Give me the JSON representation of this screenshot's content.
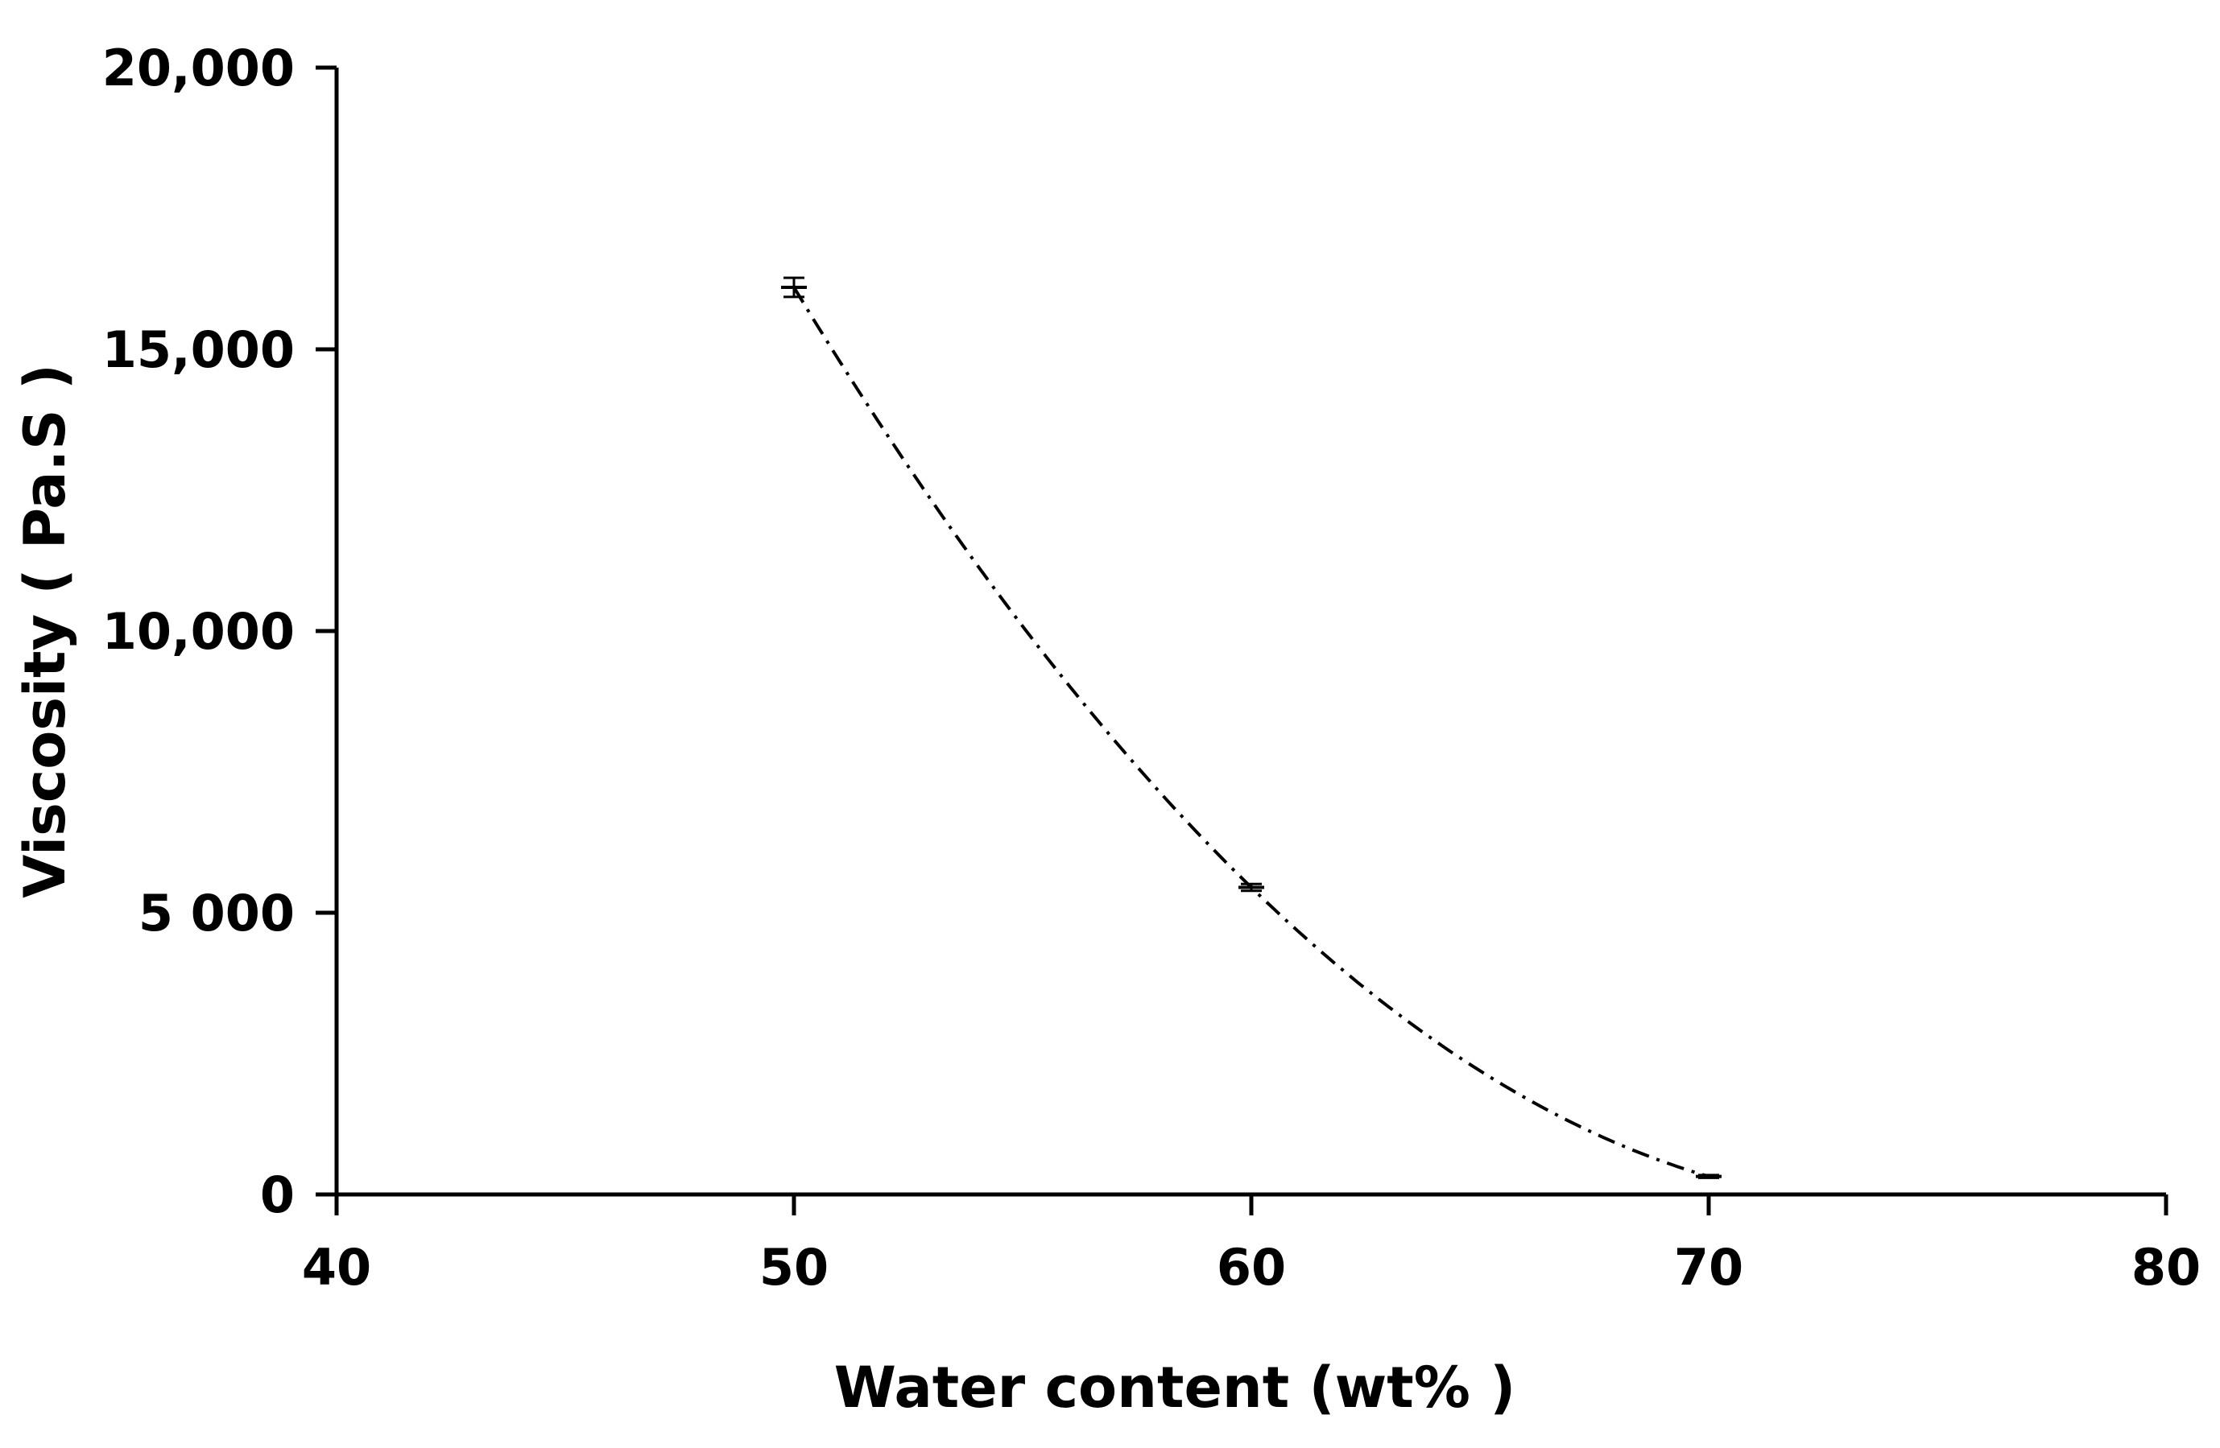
{
  "chart_data": {
    "type": "line",
    "title": "",
    "xlabel": "Water content  (wt% )",
    "ylabel": "Viscosity  ( Pa.S )",
    "xlim": [
      40,
      80
    ],
    "ylim": [
      0,
      20000
    ],
    "x_ticks": [
      {
        "value": 40,
        "label": "40"
      },
      {
        "value": 50,
        "label": "50"
      },
      {
        "value": 60,
        "label": "60"
      },
      {
        "value": 70,
        "label": "70"
      },
      {
        "value": 80,
        "label": "80"
      }
    ],
    "y_ticks": [
      {
        "value": 0,
        "label": "0"
      },
      {
        "value": 5000,
        "label": "5 000"
      },
      {
        "value": 10000,
        "label": "10,000"
      },
      {
        "value": 15000,
        "label": "15,000"
      },
      {
        "value": 20000,
        "label": "20,000"
      }
    ],
    "grid": false,
    "legend": "none",
    "series": [
      {
        "x": [
          50,
          60,
          70
        ],
        "y": [
          16100,
          5450,
          320
        ],
        "error": [
          170,
          60,
          25
        ],
        "line_style": "dash-dot",
        "color": "#000000"
      }
    ]
  }
}
